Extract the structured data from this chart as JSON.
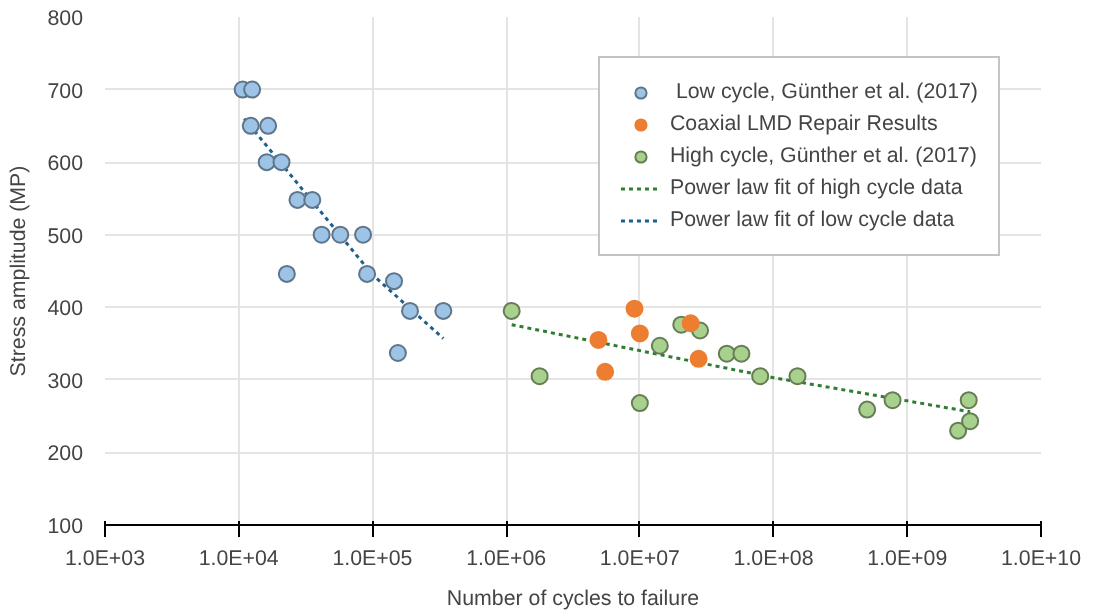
{
  "chart_data": {
    "type": "scatter",
    "xlabel": "Number of cycles to failure",
    "ylabel": "Stress amplitude (MP)",
    "log": "x",
    "grid": true,
    "legend": "top right",
    "xlim": [
      1000,
      10000000000
    ],
    "ylim": [
      100,
      800
    ],
    "xticks": [
      {
        "value": 1000,
        "label": "1.0E+03"
      },
      {
        "value": 10000,
        "label": "1.0E+04"
      },
      {
        "value": 100000,
        "label": "1.0E+05"
      },
      {
        "value": 1000000,
        "label": "1.0E+06"
      },
      {
        "value": 10000000,
        "label": "1.0E+07"
      },
      {
        "value": 100000000,
        "label": "1.0E+08"
      },
      {
        "value": 1000000000,
        "label": "1.0E+09"
      },
      {
        "value": 10000000000,
        "label": "1.0E+10"
      }
    ],
    "yticks": [
      100,
      200,
      300,
      400,
      500,
      600,
      700,
      800
    ],
    "series": [
      {
        "name": " Low cycle, Günther et al. (2017)",
        "marker": "circle",
        "color": "#9dc3e6",
        "x": [
          10700,
          12600,
          12300,
          16600,
          16200,
          20900,
          27500,
          35500,
          41700,
          57500,
          85100,
          22900,
          91200,
          145000,
          191000,
          339000,
          155000
        ],
        "values": [
          700,
          700,
          650,
          650,
          600,
          600,
          548,
          548,
          500,
          500,
          500,
          446,
          446,
          436,
          395,
          395,
          337
        ]
      },
      {
        "name": "Coaxial LMD Repair Results",
        "marker": "circle",
        "color": "#ed7d31",
        "x": [
          9120000,
          10000000,
          4900000,
          5500000,
          24000000,
          27500000
        ],
        "values": [
          398,
          364,
          355,
          311,
          378,
          329
        ]
      },
      {
        "name": "High cycle, Günther et al. (2017)",
        "marker": "circle",
        "color": "#a9d18e",
        "x": [
          1100000,
          1780000,
          14100000,
          10000000,
          20400000,
          28200000,
          44700000,
          57500000,
          79400000,
          151000000,
          501000000,
          776000000,
          2400000000,
          2880000000,
          2950000000
        ],
        "values": [
          395,
          305,
          347,
          268,
          376,
          368,
          336,
          336,
          305,
          305,
          259,
          272,
          230,
          272,
          243
        ]
      },
      {
        "name": "Power law fit of high cycle data",
        "type": "line",
        "line_style": "dashed",
        "color": "#2e7d32",
        "x": [
          1100000,
          100000000,
          2950000000
        ],
        "values": [
          376,
          303,
          256
        ]
      },
      {
        "name": "Power law fit of low cycle data",
        "type": "line",
        "line_style": "dashed",
        "color": "#1f5f8b",
        "x": [
          11000,
          100000,
          339000
        ],
        "values": [
          660,
          445,
          357
        ]
      }
    ]
  }
}
